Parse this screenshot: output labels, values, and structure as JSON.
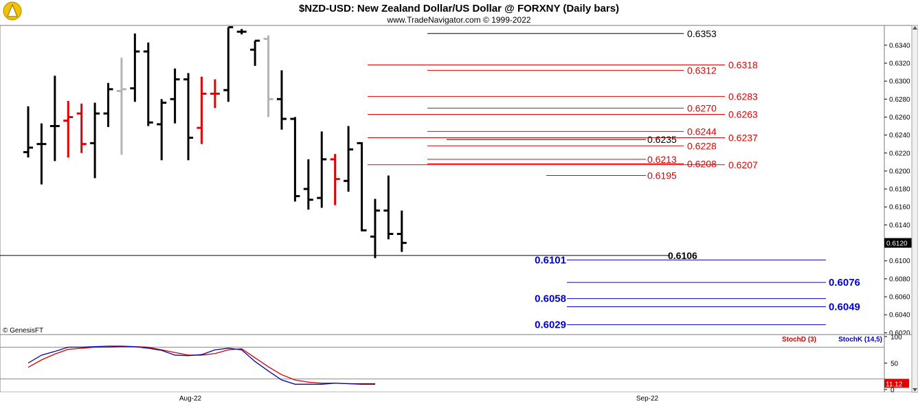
{
  "title": "$NZD-USD:  New Zealand Dollar/US Dollar @ FORXNY  (Daily bars)",
  "subtitle": "www.TradeNavigator.com © 1999-2022",
  "watermark": "© GenesisFT",
  "colors": {
    "up_bar": "#000000",
    "down_bar": "#e00000",
    "neutral_bar": "#b4b4b4",
    "red_level": "#e00000",
    "black_level": "#000000",
    "blue_level": "#0000c8",
    "stoch_d": "#d00000",
    "stoch_k": "#0000b0"
  },
  "chart_data": [
    {
      "type": "ohlc",
      "panel": "price",
      "ylim": [
        0.6018,
        0.6362
      ],
      "y_ticks": [
        "0.6340",
        "0.6320",
        "0.6300",
        "0.6280",
        "0.6260",
        "0.6240",
        "0.6220",
        "0.6200",
        "0.6180",
        "0.6160",
        "0.6140",
        "0.6120",
        "0.6100",
        "0.6080",
        "0.6060",
        "0.6040",
        "0.6020"
      ],
      "last_price_label": "0.6120",
      "x_labels": [
        "Aug-22",
        "Sep-22"
      ],
      "bars": [
        {
          "o": 0.6221,
          "h": 0.6272,
          "l": 0.6215,
          "c": 0.6226,
          "color": "up"
        },
        {
          "o": 0.623,
          "h": 0.6253,
          "l": 0.6185,
          "c": 0.623,
          "color": "up"
        },
        {
          "o": 0.625,
          "h": 0.6306,
          "l": 0.6211,
          "c": 0.625,
          "color": "up"
        },
        {
          "o": 0.6256,
          "h": 0.6278,
          "l": 0.6215,
          "c": 0.626,
          "color": "down"
        },
        {
          "o": 0.6264,
          "h": 0.6275,
          "l": 0.622,
          "c": 0.623,
          "color": "down"
        },
        {
          "o": 0.6231,
          "h": 0.6276,
          "l": 0.6192,
          "c": 0.6264,
          "color": "up"
        },
        {
          "o": 0.6264,
          "h": 0.6298,
          "l": 0.6249,
          "c": 0.6291,
          "color": "up"
        },
        {
          "o": 0.6289,
          "h": 0.6326,
          "l": 0.6218,
          "c": 0.6291,
          "color": "neutral"
        },
        {
          "o": 0.6292,
          "h": 0.6353,
          "l": 0.6277,
          "c": 0.6333,
          "color": "up"
        },
        {
          "o": 0.6333,
          "h": 0.6343,
          "l": 0.625,
          "c": 0.6254,
          "color": "up"
        },
        {
          "o": 0.6252,
          "h": 0.628,
          "l": 0.6212,
          "c": 0.6276,
          "color": "up"
        },
        {
          "o": 0.628,
          "h": 0.6314,
          "l": 0.6253,
          "c": 0.6302,
          "color": "up"
        },
        {
          "o": 0.6302,
          "h": 0.6309,
          "l": 0.6212,
          "c": 0.6237,
          "color": "up"
        },
        {
          "o": 0.6248,
          "h": 0.6305,
          "l": 0.623,
          "c": 0.6286,
          "color": "down"
        },
        {
          "o": 0.6286,
          "h": 0.6302,
          "l": 0.627,
          "c": 0.6286,
          "color": "down"
        },
        {
          "o": 0.629,
          "h": 0.636,
          "l": 0.6277,
          "c": 0.636,
          "color": "up"
        },
        {
          "o": 0.6355,
          "h": 0.6358,
          "l": 0.6352,
          "c": 0.6355,
          "color": "up"
        },
        {
          "o": 0.6335,
          "h": 0.6345,
          "l": 0.6317,
          "c": 0.6345,
          "color": "up"
        },
        {
          "o": 0.6347,
          "h": 0.6351,
          "l": 0.626,
          "c": 0.628,
          "color": "neutral"
        },
        {
          "o": 0.628,
          "h": 0.6312,
          "l": 0.6246,
          "c": 0.6258,
          "color": "up"
        },
        {
          "o": 0.6258,
          "h": 0.626,
          "l": 0.6166,
          "c": 0.6172,
          "color": "up"
        },
        {
          "o": 0.618,
          "h": 0.6213,
          "l": 0.6157,
          "c": 0.6168,
          "color": "up"
        },
        {
          "o": 0.617,
          "h": 0.6244,
          "l": 0.6159,
          "c": 0.6213,
          "color": "up"
        },
        {
          "o": 0.6213,
          "h": 0.6219,
          "l": 0.6162,
          "c": 0.6191,
          "color": "down"
        },
        {
          "o": 0.6189,
          "h": 0.625,
          "l": 0.6177,
          "c": 0.6224,
          "color": "up"
        },
        {
          "o": 0.6231,
          "h": 0.6232,
          "l": 0.6133,
          "c": 0.6134,
          "color": "up"
        },
        {
          "o": 0.6127,
          "h": 0.6169,
          "l": 0.6103,
          "c": 0.6156,
          "color": "up"
        },
        {
          "o": 0.6156,
          "h": 0.6195,
          "l": 0.6124,
          "c": 0.613,
          "color": "up"
        },
        {
          "o": 0.613,
          "h": 0.6156,
          "l": 0.611,
          "c": 0.612,
          "color": "up"
        }
      ],
      "levels": [
        {
          "value": 0.6353,
          "label": "0.6353",
          "color": "black",
          "style": "line-label"
        },
        {
          "value": 0.6318,
          "label": "0.6318",
          "color": "red",
          "style": "line-label"
        },
        {
          "value": 0.6312,
          "label": "0.6312",
          "color": "red",
          "style": "line-label"
        },
        {
          "value": 0.6283,
          "label": "0.6283",
          "color": "red",
          "style": "line-label"
        },
        {
          "value": 0.627,
          "label": "0.6270",
          "color": "red",
          "style": "line-label"
        },
        {
          "value": 0.6263,
          "label": "0.6263",
          "color": "red",
          "style": "line-label"
        },
        {
          "value": 0.6244,
          "label": "0.6244",
          "color": "red",
          "style": "line-label"
        },
        {
          "value": 0.6237,
          "label": "0.6237",
          "color": "red",
          "style": "line-label"
        },
        {
          "value": 0.6235,
          "label": "0.6235",
          "color": "black",
          "style": "line-label"
        },
        {
          "value": 0.6228,
          "label": "0.6228",
          "color": "red",
          "style": "line-label"
        },
        {
          "value": 0.6213,
          "label": "0.6213",
          "color": "red",
          "style": "line-label"
        },
        {
          "value": 0.6208,
          "label": "0.6208",
          "color": "red",
          "style": "line-label"
        },
        {
          "value": 0.6207,
          "label": "0.6207",
          "color": "red",
          "style": "line-label"
        },
        {
          "value": 0.6195,
          "label": "0.6195",
          "color": "red",
          "style": "line-label"
        },
        {
          "value": 0.6106,
          "label": "0.6106",
          "color": "black",
          "style": "bold-label"
        },
        {
          "value": 0.6101,
          "label": "0.6101",
          "color": "blue",
          "style": "line-label"
        },
        {
          "value": 0.6076,
          "label": "0.6076",
          "color": "blue",
          "style": "line-label"
        },
        {
          "value": 0.6058,
          "label": "0.6058",
          "color": "blue",
          "style": "line-label"
        },
        {
          "value": 0.6049,
          "label": "0.6049",
          "color": "blue",
          "style": "line-label"
        },
        {
          "value": 0.6029,
          "label": "0.6029",
          "color": "blue",
          "style": "line-label"
        }
      ]
    },
    {
      "type": "line",
      "panel": "stochastic",
      "ylim": [
        0,
        100
      ],
      "y_ticks": [
        "100",
        "50",
        "0"
      ],
      "reference_lines": [
        80,
        20
      ],
      "last_value_label": "11.12",
      "series": [
        {
          "name": "StochD (3)",
          "color": "red",
          "values": [
            42,
            56,
            67,
            76,
            78,
            80,
            80,
            81,
            81,
            80,
            75,
            70,
            65,
            65,
            68,
            75,
            77,
            60,
            43,
            28,
            18,
            14,
            12,
            12,
            11,
            11,
            11
          ]
        },
        {
          "name": "StochK (14,5)",
          "color": "blue",
          "values": [
            50,
            65,
            72,
            80,
            80,
            81,
            82,
            82,
            81,
            78,
            74,
            65,
            64,
            66,
            75,
            78,
            75,
            53,
            35,
            18,
            10,
            10,
            10,
            12,
            11,
            10,
            10
          ]
        }
      ]
    }
  ]
}
